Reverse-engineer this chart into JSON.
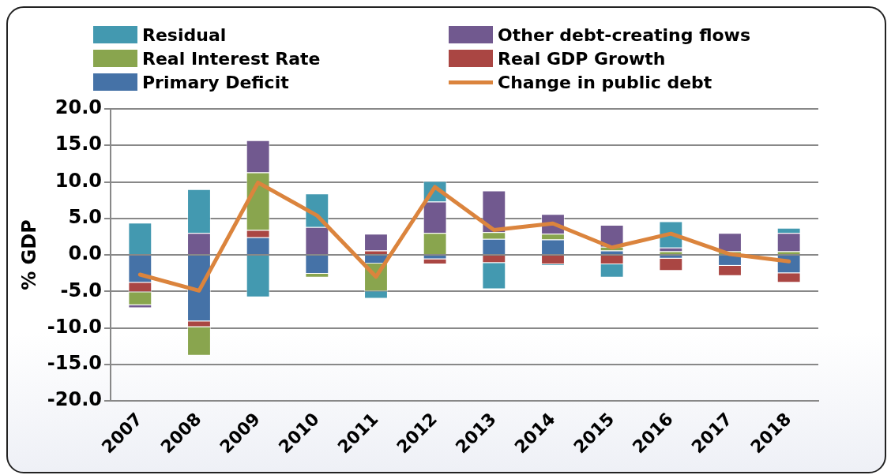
{
  "chart_data": {
    "type": "bar",
    "stacked": true,
    "ylabel": "% GDP",
    "categories": [
      "2007",
      "2008",
      "2009",
      "2010",
      "2011",
      "2012",
      "2013",
      "2014",
      "2015",
      "2016",
      "2017",
      "2018"
    ],
    "ylim": [
      -20,
      20
    ],
    "yticks": [
      {
        "value": -20,
        "label": "-20.0"
      },
      {
        "value": -15,
        "label": "-15.0"
      },
      {
        "value": -10,
        "label": "-10.0"
      },
      {
        "value": -5,
        "label": "-5.0"
      },
      {
        "value": 0,
        "label": "0.0"
      },
      {
        "value": 5,
        "label": "5.0"
      },
      {
        "value": 10,
        "label": "10.0"
      },
      {
        "value": 15,
        "label": "15.0"
      },
      {
        "value": 20,
        "label": "20.0"
      }
    ],
    "grid": "y",
    "legend": "top",
    "series": [
      {
        "name": "Primary Deficit",
        "color": "#4572a7",
        "values": [
          -3.8,
          -9.1,
          2.4,
          -2.6,
          -1.2,
          -0.6,
          2.2,
          2.1,
          0.6,
          -0.5,
          -1.5,
          -2.5
        ]
      },
      {
        "name": "Real GDP Growth",
        "color": "#aa4643",
        "values": [
          -1.3,
          -0.8,
          1.0,
          null,
          0.6,
          -0.7,
          -1.1,
          -1.3,
          -1.3,
          -1.7,
          -1.4,
          -1.3
        ]
      },
      {
        "name": "Real Interest Rate",
        "color": "#89a54e",
        "values": [
          -1.8,
          -3.9,
          7.9,
          -0.5,
          -3.8,
          3.0,
          0.9,
          0.8,
          0.5,
          0.5,
          0.5,
          0.5
        ]
      },
      {
        "name": "Other debt-creating flows",
        "color": "#71598f",
        "values": [
          -0.4,
          3.0,
          4.4,
          3.8,
          2.3,
          4.3,
          5.7,
          2.7,
          3.0,
          0.5,
          2.5,
          2.5
        ]
      },
      {
        "name": "Residual",
        "color": "#4399b0",
        "values": [
          4.4,
          6.0,
          -5.8,
          4.6,
          -1.0,
          2.8,
          -3.6,
          -0.2,
          -1.8,
          3.6,
          null,
          0.7
        ]
      },
      {
        "name": "Change in public debt",
        "type": "line",
        "color": "#db843d",
        "values": [
          -2.7,
          -4.9,
          9.9,
          5.4,
          -3.0,
          9.3,
          3.4,
          4.3,
          1.0,
          2.9,
          0.1,
          -0.9
        ]
      }
    ]
  }
}
